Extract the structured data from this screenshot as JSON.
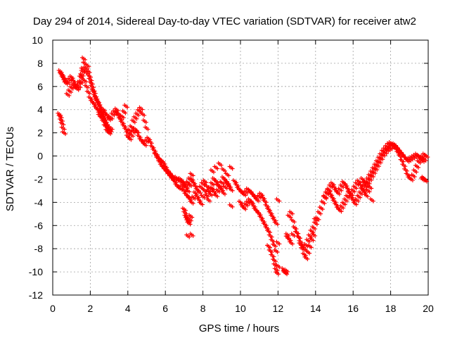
{
  "chart_data": {
    "type": "scatter",
    "title": "Day 294 of 2014, Sidereal Day-to-day VTEC variation (SDTVAR) for receiver atw2",
    "xlabel": "GPS time / hours",
    "ylabel": "SDTVAR / TECUs",
    "xlim": [
      0,
      20
    ],
    "ylim": [
      -12,
      10
    ],
    "x_ticks": [
      0,
      2,
      4,
      6,
      8,
      10,
      12,
      14,
      16,
      18,
      20
    ],
    "y_ticks": [
      -12,
      -10,
      -8,
      -6,
      -4,
      -2,
      0,
      2,
      4,
      6,
      8,
      10
    ],
    "grid": true,
    "marker": "+",
    "series": [
      {
        "name": "SDTVAR",
        "color": "#ff0000",
        "x": [
          0.35,
          0.4,
          0.45,
          0.5,
          0.55,
          0.6,
          0.4,
          0.45,
          0.5,
          0.55,
          0.6,
          0.65,
          0.7,
          0.8,
          0.9,
          1.0,
          1.1,
          1.2,
          1.3,
          1.4,
          1.5,
          1.55,
          1.6,
          0.8,
          0.9,
          1.0,
          1.1,
          1.2,
          1.3,
          1.4,
          1.5,
          1.6,
          1.65,
          1.7,
          1.75,
          1.8,
          1.85,
          1.9,
          1.95,
          2.0,
          2.05,
          2.1,
          2.15,
          2.2,
          2.25,
          2.3,
          2.35,
          2.4,
          2.45,
          2.5,
          2.55,
          2.6,
          2.65,
          2.7,
          2.75,
          2.8,
          2.85,
          2.9,
          2.95,
          3.0,
          3.05,
          3.1,
          1.7,
          1.8,
          1.9,
          2.0,
          2.1,
          2.2,
          2.3,
          2.4,
          2.5,
          2.6,
          2.7,
          2.8,
          2.9,
          3.0,
          2.5,
          2.6,
          2.7,
          2.8,
          2.9,
          3.0,
          3.1,
          3.2,
          3.3,
          3.4,
          3.5,
          3.6,
          3.7,
          3.8,
          3.9,
          3.4,
          3.5,
          3.6,
          3.7,
          3.8,
          3.9,
          4.0,
          4.1,
          4.2,
          4.3,
          4.4,
          4.5,
          4.6,
          4.7,
          4.8,
          4.9,
          5.0,
          4.0,
          4.1,
          4.2,
          4.3,
          4.4,
          4.5,
          4.6,
          4.7,
          4.8,
          4.9,
          5.0,
          5.1,
          5.2,
          5.3,
          5.4,
          5.5,
          5.6,
          5.7,
          5.8,
          5.9,
          6.0,
          6.1,
          6.2,
          6.3,
          6.4,
          6.5,
          6.6,
          6.7,
          6.8,
          6.9,
          7.0,
          7.1,
          7.2,
          7.3,
          5.5,
          5.6,
          5.7,
          5.8,
          5.9,
          6.0,
          6.1,
          6.2,
          6.3,
          6.4,
          6.5,
          6.6,
          6.7,
          6.8,
          6.9,
          7.0,
          7.1,
          7.2,
          7.3,
          7.4,
          7.5,
          7.6,
          7.7,
          7.8,
          7.9,
          8.0,
          8.1,
          8.2,
          8.3,
          8.4,
          8.5,
          8.6,
          8.7,
          8.8,
          8.9,
          9.0,
          9.1,
          9.2,
          9.3,
          9.4,
          9.5,
          7.0,
          7.1,
          7.2,
          7.3,
          7.4,
          7.5,
          7.6,
          7.7,
          7.8,
          7.9,
          8.0,
          8.1,
          8.2,
          8.3,
          8.4,
          8.5,
          8.6,
          8.7,
          8.8,
          8.9,
          9.0,
          9.1,
          9.2,
          9.3,
          9.4,
          9.5,
          7.0,
          7.05,
          7.1,
          7.15,
          7.2,
          7.25,
          7.3,
          7.35,
          7.4,
          7.2,
          7.4,
          8.5,
          8.7,
          8.9,
          9.1,
          9.3,
          9.5,
          9.7,
          9.8,
          9.9,
          10.0,
          10.1,
          10.2,
          10.3,
          10.4,
          10.5,
          10.6,
          10.7,
          10.8,
          10.9,
          11.0,
          11.1,
          11.2,
          11.3,
          11.4,
          11.5,
          11.6,
          11.7,
          11.8,
          11.9,
          12.0,
          10.0,
          10.1,
          10.2,
          10.3,
          10.4,
          10.5,
          10.6,
          10.7,
          10.8,
          10.9,
          11.0,
          11.1,
          11.2,
          11.3,
          11.4,
          11.5,
          11.6,
          11.7,
          11.8,
          11.9,
          12.0,
          11.5,
          11.6,
          11.7,
          11.8,
          11.85,
          11.9,
          11.95,
          12.0,
          12.3,
          12.35,
          12.4,
          12.45,
          12.5,
          12.5,
          12.6,
          12.7,
          12.8,
          12.9,
          13.0,
          13.1,
          13.2,
          13.3,
          13.4,
          13.5,
          13.6,
          13.7,
          13.8,
          13.9,
          14.0,
          12.6,
          12.7,
          12.8,
          12.9,
          13.0,
          13.1,
          13.2,
          13.3,
          13.4,
          13.5,
          13.6,
          13.7,
          13.8,
          13.9,
          14.0,
          14.1,
          14.2,
          14.3,
          14.4,
          14.5,
          14.6,
          14.7,
          14.8,
          14.9,
          15.0,
          15.1,
          15.2,
          15.3,
          15.4,
          15.5,
          15.6,
          15.7,
          15.8,
          15.9,
          16.0,
          16.1,
          16.2,
          16.3,
          16.4,
          16.5,
          16.6,
          16.7,
          16.8,
          16.9,
          17.0,
          14.5,
          14.6,
          14.7,
          14.8,
          14.9,
          15.0,
          15.1,
          15.2,
          15.3,
          15.4,
          15.5,
          15.6,
          15.7,
          15.8,
          15.9,
          16.0,
          16.1,
          16.2,
          16.3,
          16.4,
          16.5,
          16.6,
          16.7,
          16.8,
          16.9,
          17.0,
          17.1,
          17.2,
          17.3,
          17.4,
          17.5,
          17.6,
          17.7,
          17.8,
          17.9,
          18.0,
          18.1,
          18.2,
          18.3,
          18.4,
          18.5,
          18.6,
          18.7,
          18.8,
          18.9,
          19.0,
          19.1,
          19.2,
          19.3,
          19.4,
          19.5,
          19.6,
          19.7,
          19.8,
          16.5,
          16.6,
          16.7,
          16.8,
          16.9,
          17.0,
          17.1,
          17.2,
          17.3,
          17.4,
          17.5,
          17.6,
          17.7,
          17.8,
          17.9,
          18.0,
          18.1,
          18.2,
          18.3,
          18.4,
          18.5,
          18.6,
          18.7,
          18.8,
          18.9,
          19.0,
          19.1,
          19.2,
          19.3,
          19.4,
          19.5,
          19.6,
          19.7,
          19.8,
          19.9,
          19.7,
          19.75,
          19.8,
          19.85
        ],
        "y": [
          3.6,
          3.4,
          3.1,
          2.8,
          2.4,
          2.0,
          7.3,
          7.1,
          7.0,
          6.8,
          6.7,
          6.5,
          6.3,
          6.4,
          6.6,
          6.8,
          6.5,
          6.2,
          5.9,
          6.3,
          6.8,
          7.0,
          7.3,
          5.3,
          5.6,
          5.9,
          6.1,
          6.0,
          5.8,
          6.0,
          6.4,
          7.5,
          8.4,
          8.0,
          7.6,
          7.2,
          7.8,
          7.3,
          6.9,
          6.6,
          6.3,
          6.0,
          5.7,
          5.5,
          5.2,
          5.0,
          4.8,
          4.7,
          4.5,
          4.3,
          4.0,
          3.8,
          3.6,
          3.4,
          3.2,
          3.0,
          2.8,
          2.6,
          2.4,
          2.3,
          2.2,
          2.4,
          6.5,
          6.0,
          5.5,
          5.0,
          4.7,
          4.5,
          4.2,
          4.0,
          3.7,
          3.3,
          3.0,
          2.6,
          2.2,
          2.0,
          3.5,
          3.8,
          4.0,
          3.7,
          3.5,
          3.2,
          3.3,
          3.6,
          3.8,
          4.0,
          3.6,
          3.2,
          3.4,
          3.8,
          4.3,
          3.8,
          3.5,
          3.2,
          2.9,
          2.6,
          2.3,
          2.0,
          2.2,
          2.5,
          3.0,
          3.3,
          3.6,
          3.9,
          4.1,
          3.6,
          3.0,
          2.4,
          1.7,
          1.5,
          1.8,
          2.1,
          2.3,
          2.1,
          1.7,
          1.4,
          1.2,
          1.0,
          1.3,
          1.5,
          1.2,
          0.8,
          0.5,
          0.2,
          -0.1,
          -0.3,
          -0.4,
          -0.6,
          -0.9,
          -1.2,
          -1.4,
          -1.6,
          -1.8,
          -2.0,
          -1.9,
          -2.1,
          -2.0,
          -2.2,
          -2.4,
          -2.6,
          -2.3,
          -2.0,
          0.1,
          -0.2,
          -0.5,
          -0.8,
          -1.0,
          -1.2,
          -1.4,
          -1.6,
          -1.8,
          -2.0,
          -2.2,
          -2.5,
          -2.7,
          -2.8,
          -2.6,
          -2.5,
          -2.7,
          -3.0,
          -2.5,
          -2.0,
          -2.3,
          -2.6,
          -2.9,
          -3.1,
          -2.7,
          -2.4,
          -2.2,
          -2.6,
          -3.0,
          -2.8,
          -2.4,
          -2.0,
          -2.2,
          -2.5,
          -2.7,
          -2.3,
          -1.9,
          -2.1,
          -2.4,
          -2.6,
          -2.9,
          -3.0,
          -3.3,
          -3.5,
          -3.7,
          -4.0,
          -3.6,
          -3.2,
          -3.5,
          -3.8,
          -4.1,
          -3.5,
          -3.0,
          -3.4,
          -3.8,
          -3.3,
          -2.8,
          -3.1,
          -3.4,
          -3.0,
          -2.6,
          -2.9,
          -3.2,
          -2.7,
          -2.3,
          -2.6,
          -4.3,
          -4.6,
          -4.9,
          -5.2,
          -5.4,
          -5.6,
          -5.8,
          -5.5,
          -5.2,
          -6.8,
          -6.9,
          -1.6,
          -1.3,
          -1.0,
          -0.7,
          -1.2,
          -1.6,
          -1.0,
          -2.2,
          -2.5,
          -2.8,
          -3.0,
          -3.2,
          -3.3,
          -3.1,
          -2.9,
          -3.0,
          -3.2,
          -3.4,
          -3.6,
          -3.8,
          -3.5,
          -3.3,
          -3.6,
          -3.9,
          -4.3,
          -4.6,
          -4.9,
          -5.2,
          -5.5,
          -5.8,
          -3.8,
          -4.0,
          -4.3,
          -4.5,
          -4.2,
          -4.0,
          -3.8,
          -4.0,
          -4.3,
          -4.6,
          -4.8,
          -5.0,
          -5.3,
          -5.6,
          -5.9,
          -6.2,
          -6.5,
          -6.9,
          -7.3,
          -7.7,
          -8.2,
          -7.5,
          -7.8,
          -8.2,
          -8.6,
          -9.0,
          -9.4,
          -9.8,
          -10.1,
          -9.5,
          -9.8,
          -10.0,
          -10.1,
          -9.9,
          -7.0,
          -6.8,
          -7.2,
          -7.5,
          -6.8,
          -6.2,
          -6.6,
          -7.0,
          -7.6,
          -8.0,
          -8.5,
          -8.8,
          -8.3,
          -7.8,
          -7.2,
          -6.8,
          -5.5,
          -5.2,
          -4.9,
          -5.6,
          -6.2,
          -6.6,
          -7.0,
          -7.4,
          -7.8,
          -8.0,
          -7.7,
          -7.3,
          -6.9,
          -6.5,
          -6.2,
          -5.8,
          -5.4,
          -4.9,
          -4.5,
          -4.0,
          -3.6,
          -3.2,
          -2.9,
          -2.6,
          -2.4,
          -2.7,
          -3.0,
          -3.2,
          -2.9,
          -2.6,
          -2.3,
          -2.5,
          -2.8,
          -3.1,
          -3.3,
          -3.0,
          -2.7,
          -2.4,
          -2.2,
          -2.5,
          -2.8,
          -3.1,
          -3.4,
          -3.0,
          -2.7,
          -3.8,
          -3.5,
          -3.2,
          -3.0,
          -3.3,
          -3.6,
          -3.9,
          -4.2,
          -4.5,
          -4.7,
          -4.4,
          -4.1,
          -3.8,
          -3.5,
          -3.2,
          -3.5,
          -3.8,
          -4.1,
          -3.8,
          -3.5,
          -3.2,
          -2.9,
          -2.6,
          -2.3,
          -2.0,
          -1.7,
          -1.4,
          -1.1,
          -0.8,
          -0.5,
          -0.2,
          0.1,
          0.4,
          0.6,
          0.8,
          1.0,
          1.1,
          1.0,
          0.8,
          0.6,
          0.3,
          0.0,
          -0.4,
          -0.8,
          -1.2,
          -1.6,
          -1.9,
          -2.0,
          -1.7,
          -1.3,
          -0.9,
          -0.5,
          -0.3,
          -0.1,
          0.1,
          -2.0,
          -2.3,
          -2.5,
          -2.3,
          -2.0,
          -1.7,
          -1.4,
          -1.1,
          -0.8,
          -0.5,
          -0.2,
          0.1,
          0.3,
          0.5,
          0.6,
          0.7,
          0.9,
          1.0,
          0.8,
          0.6,
          0.4,
          0.2,
          0.0,
          -0.2,
          -0.4,
          -0.3,
          -0.2,
          -0.1,
          0.0,
          0.1,
          0.0,
          -0.2,
          -0.4,
          -0.3,
          0.0,
          -2.0,
          -1.9,
          -2.0,
          -2.1
        ]
      }
    ]
  }
}
